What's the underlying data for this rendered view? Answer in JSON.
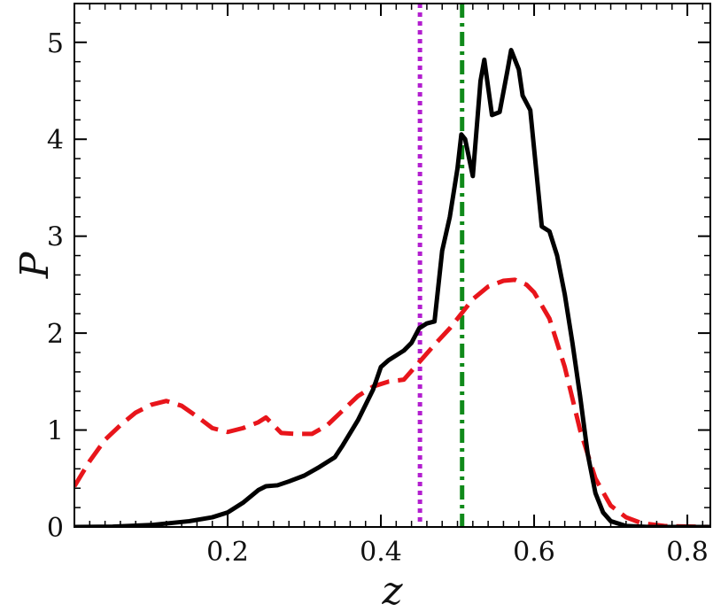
{
  "chart_data": {
    "type": "line",
    "title": "",
    "xlabel": "z",
    "ylabel": "P",
    "xlim": [
      0.0,
      0.83
    ],
    "ylim": [
      0.0,
      5.4
    ],
    "grid": false,
    "x_ticks": [
      {
        "value": 0.2,
        "label": "0.2"
      },
      {
        "value": 0.4,
        "label": "0.4"
      },
      {
        "value": 0.6,
        "label": "0.6"
      },
      {
        "value": 0.8,
        "label": "0.8"
      }
    ],
    "y_ticks": [
      {
        "value": 0,
        "label": "0"
      },
      {
        "value": 1,
        "label": "1"
      },
      {
        "value": 2,
        "label": "2"
      },
      {
        "value": 3,
        "label": "3"
      },
      {
        "value": 4,
        "label": "4"
      },
      {
        "value": 5,
        "label": "5"
      }
    ],
    "series": [
      {
        "style": "solid",
        "color": "#000000",
        "points": [
          [
            0.0,
            0.0
          ],
          [
            0.05,
            0.003
          ],
          [
            0.1,
            0.02
          ],
          [
            0.15,
            0.06
          ],
          [
            0.18,
            0.1
          ],
          [
            0.2,
            0.15
          ],
          [
            0.22,
            0.25
          ],
          [
            0.24,
            0.38
          ],
          [
            0.25,
            0.42
          ],
          [
            0.265,
            0.43
          ],
          [
            0.28,
            0.47
          ],
          [
            0.3,
            0.53
          ],
          [
            0.32,
            0.62
          ],
          [
            0.34,
            0.72
          ],
          [
            0.35,
            0.84
          ],
          [
            0.37,
            1.1
          ],
          [
            0.39,
            1.42
          ],
          [
            0.4,
            1.65
          ],
          [
            0.41,
            1.72
          ],
          [
            0.43,
            1.82
          ],
          [
            0.44,
            1.9
          ],
          [
            0.45,
            2.05
          ],
          [
            0.46,
            2.1
          ],
          [
            0.47,
            2.12
          ],
          [
            0.48,
            2.85
          ],
          [
            0.49,
            3.2
          ],
          [
            0.5,
            3.7
          ],
          [
            0.505,
            4.05
          ],
          [
            0.51,
            4.0
          ],
          [
            0.52,
            3.62
          ],
          [
            0.53,
            4.6
          ],
          [
            0.535,
            4.82
          ],
          [
            0.545,
            4.25
          ],
          [
            0.555,
            4.28
          ],
          [
            0.565,
            4.7
          ],
          [
            0.57,
            4.92
          ],
          [
            0.58,
            4.72
          ],
          [
            0.585,
            4.45
          ],
          [
            0.595,
            4.3
          ],
          [
            0.6,
            3.9
          ],
          [
            0.61,
            3.1
          ],
          [
            0.62,
            3.05
          ],
          [
            0.63,
            2.8
          ],
          [
            0.64,
            2.4
          ],
          [
            0.65,
            1.9
          ],
          [
            0.66,
            1.35
          ],
          [
            0.67,
            0.75
          ],
          [
            0.68,
            0.35
          ],
          [
            0.69,
            0.15
          ],
          [
            0.7,
            0.06
          ],
          [
            0.72,
            0.01
          ],
          [
            0.75,
            0.0
          ],
          [
            0.83,
            0.0
          ]
        ]
      },
      {
        "style": "dashed",
        "color": "#e8151b",
        "points": [
          [
            0.0,
            0.42
          ],
          [
            0.02,
            0.68
          ],
          [
            0.04,
            0.9
          ],
          [
            0.06,
            1.05
          ],
          [
            0.08,
            1.18
          ],
          [
            0.1,
            1.26
          ],
          [
            0.12,
            1.3
          ],
          [
            0.14,
            1.25
          ],
          [
            0.16,
            1.14
          ],
          [
            0.18,
            1.02
          ],
          [
            0.2,
            0.98
          ],
          [
            0.22,
            1.02
          ],
          [
            0.24,
            1.08
          ],
          [
            0.25,
            1.13
          ],
          [
            0.26,
            1.05
          ],
          [
            0.27,
            0.97
          ],
          [
            0.29,
            0.96
          ],
          [
            0.31,
            0.96
          ],
          [
            0.33,
            1.05
          ],
          [
            0.35,
            1.2
          ],
          [
            0.37,
            1.35
          ],
          [
            0.39,
            1.45
          ],
          [
            0.41,
            1.5
          ],
          [
            0.43,
            1.52
          ],
          [
            0.45,
            1.7
          ],
          [
            0.47,
            1.88
          ],
          [
            0.49,
            2.05
          ],
          [
            0.51,
            2.25
          ],
          [
            0.52,
            2.35
          ],
          [
            0.54,
            2.48
          ],
          [
            0.56,
            2.54
          ],
          [
            0.575,
            2.55
          ],
          [
            0.59,
            2.5
          ],
          [
            0.6,
            2.42
          ],
          [
            0.62,
            2.15
          ],
          [
            0.64,
            1.65
          ],
          [
            0.66,
            1.0
          ],
          [
            0.68,
            0.5
          ],
          [
            0.7,
            0.22
          ],
          [
            0.72,
            0.1
          ],
          [
            0.74,
            0.04
          ],
          [
            0.77,
            0.01
          ],
          [
            0.83,
            0.0
          ]
        ]
      }
    ],
    "vlines": [
      {
        "x": 0.451,
        "style": "dotted",
        "color": "#b21ecf"
      },
      {
        "x": 0.506,
        "style": "dashdot",
        "color": "#108a1a"
      }
    ]
  }
}
